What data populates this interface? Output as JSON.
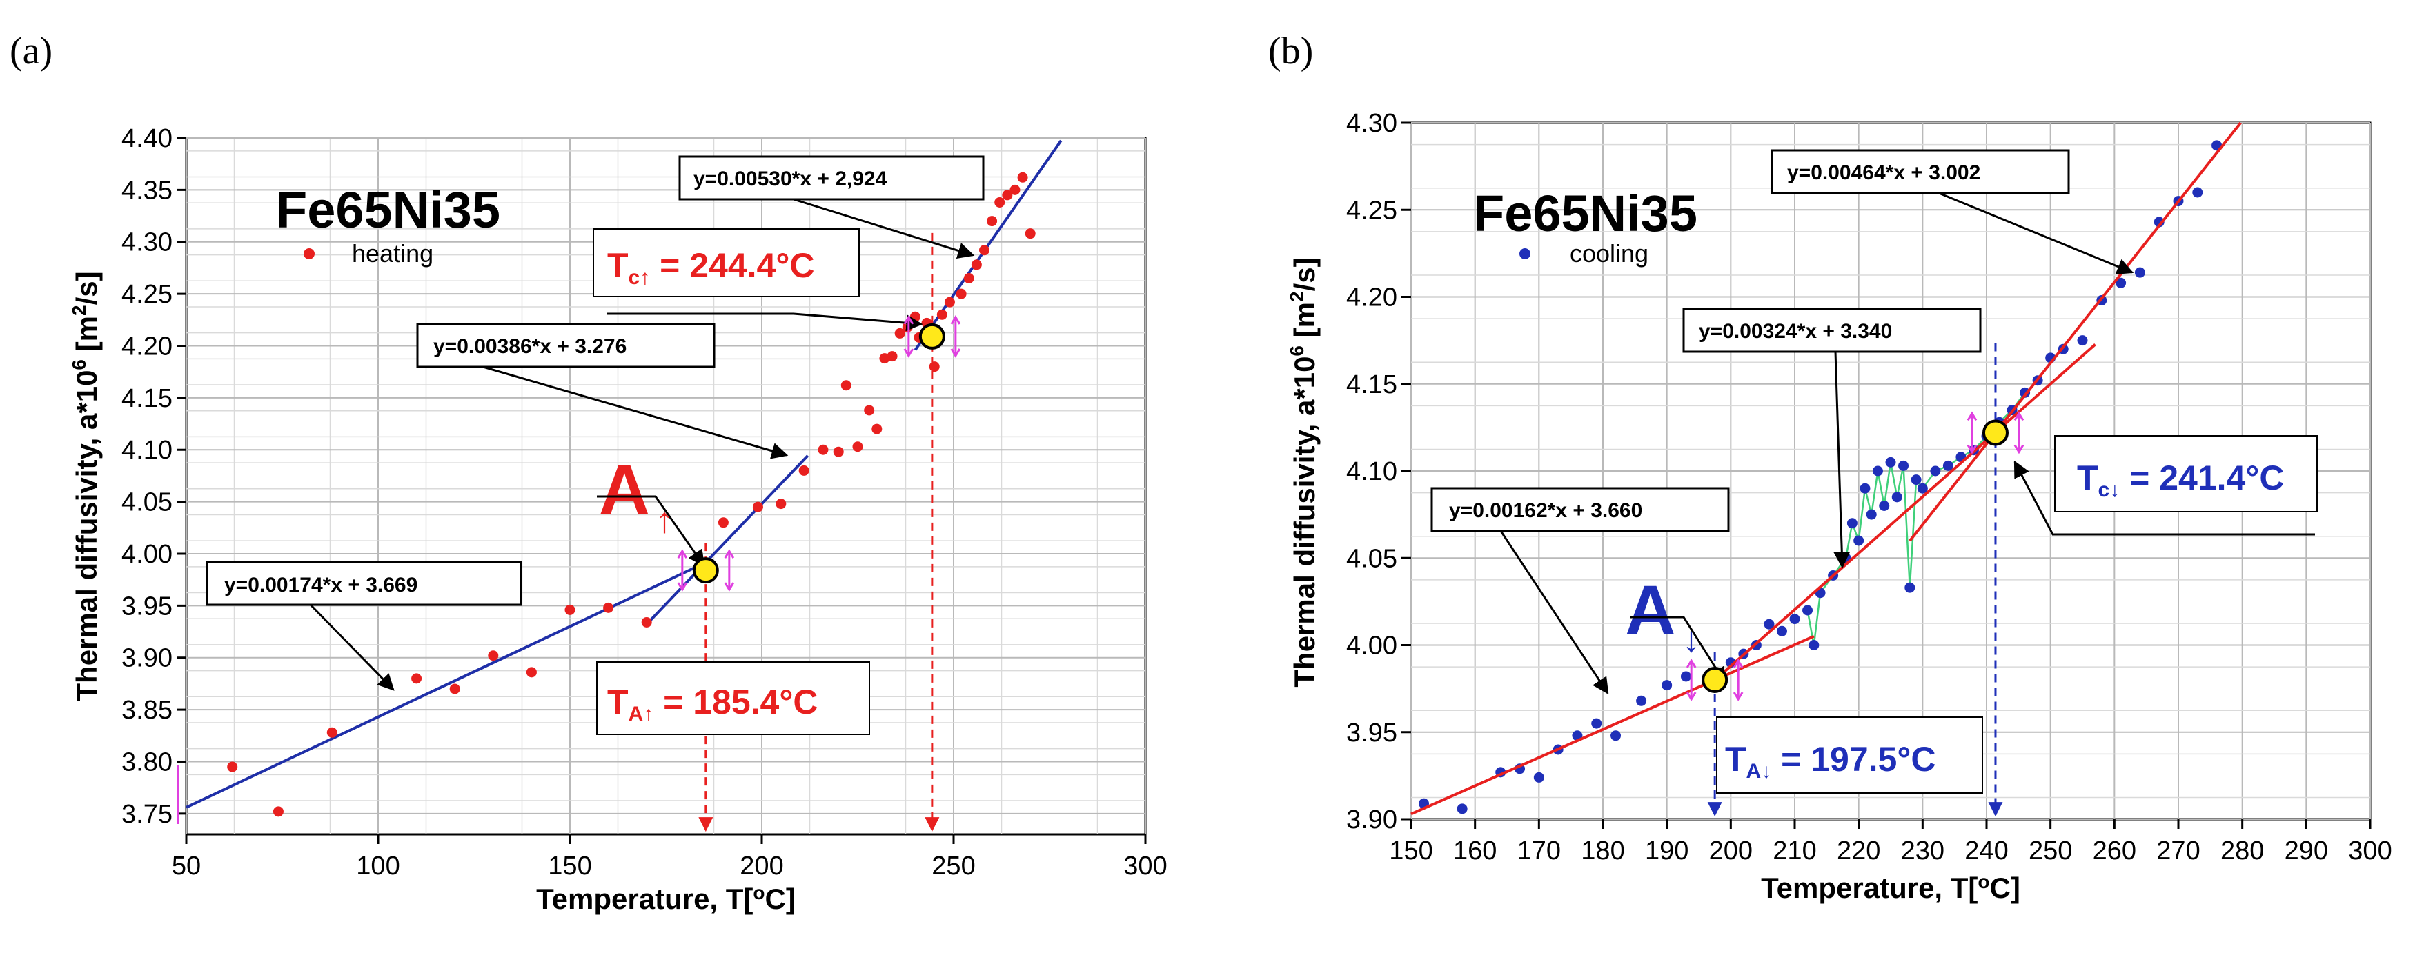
{
  "chart_data": [
    {
      "panel_label": "(a)",
      "type": "scatter",
      "title": "Fe65Ni35",
      "legend": "heating",
      "xlabel": "Temperature, T[°C]",
      "ylabel": "Thermal diffusivity, a*10⁶ [m²/s]",
      "xlim": [
        50,
        300
      ],
      "ylim": [
        3.73,
        4.4
      ],
      "xticks": [
        "50",
        "100",
        "150",
        "200",
        "250",
        "300"
      ],
      "yticks": [
        "3.75",
        "3.80",
        "3.85",
        "3.90",
        "3.95",
        "4.00",
        "4.05",
        "4.10",
        "4.15",
        "4.20",
        "4.25",
        "4.30",
        "4.35",
        "4.40"
      ],
      "marker_color": "#e8201f",
      "line_color": "#1f2fa8",
      "points": [
        [
          62,
          3.795
        ],
        [
          74,
          3.752
        ],
        [
          88,
          3.828
        ],
        [
          110,
          3.88
        ],
        [
          120,
          3.87
        ],
        [
          130,
          3.902
        ],
        [
          140,
          3.886
        ],
        [
          150,
          3.946
        ],
        [
          160,
          3.948
        ],
        [
          170,
          3.934
        ],
        [
          190,
          4.03
        ],
        [
          199,
          4.045
        ],
        [
          205,
          4.048
        ],
        [
          211,
          4.08
        ],
        [
          216,
          4.1
        ],
        [
          220,
          4.098
        ],
        [
          222,
          4.162
        ],
        [
          225,
          4.103
        ],
        [
          228,
          4.138
        ],
        [
          230,
          4.12
        ],
        [
          232,
          4.188
        ],
        [
          234,
          4.19
        ],
        [
          236,
          4.212
        ],
        [
          238,
          4.218
        ],
        [
          240,
          4.228
        ],
        [
          241,
          4.208
        ],
        [
          243,
          4.222
        ],
        [
          245,
          4.18
        ],
        [
          247,
          4.23
        ],
        [
          249,
          4.242
        ],
        [
          252,
          4.25
        ],
        [
          254,
          4.265
        ],
        [
          256,
          4.278
        ],
        [
          258,
          4.292
        ],
        [
          260,
          4.32
        ],
        [
          262,
          4.338
        ],
        [
          264,
          4.345
        ],
        [
          266,
          4.35
        ],
        [
          268,
          4.362
        ],
        [
          270,
          4.308
        ]
      ],
      "fit_lines": [
        {
          "label": "y=0.00174*x + 3.669",
          "slope": 0.00174,
          "intercept": 3.669,
          "x_range": [
            50,
            185
          ]
        },
        {
          "label": "y=0.00386*x + 3.276",
          "slope": 0.00386,
          "intercept": 3.276,
          "x_range": [
            171,
            212
          ]
        },
        {
          "label": "y=0.00530*x + 2,924",
          "slope": 0.0053,
          "intercept": 2.924,
          "x_range": [
            240,
            278
          ]
        }
      ],
      "transitions": [
        {
          "label": "A",
          "arrow": "↑",
          "x": 185.4,
          "y": 3.984,
          "annotation_main": "T",
          "annotation_sub": "A↑",
          "annotation_value": " = 185.4",
          "annotation_unit": "°C"
        },
        {
          "label": "Tc",
          "x": 244.4,
          "y": 4.209,
          "annotation_main": "T",
          "annotation_sub": "c↑",
          "annotation_value": " = 244.4",
          "annotation_unit": "°C"
        }
      ]
    },
    {
      "panel_label": "(b)",
      "type": "scatter",
      "title": "Fe65Ni35",
      "legend": "cooling",
      "xlabel": "Temperature, T[°C]",
      "ylabel": "Thermal diffusivity, a*10⁶ [m²/s]",
      "xlim": [
        150,
        300
      ],
      "ylim": [
        3.9,
        4.3
      ],
      "xticks": [
        "150",
        "160",
        "170",
        "180",
        "190",
        "200",
        "210",
        "220",
        "230",
        "240",
        "250",
        "260",
        "270",
        "280",
        "290",
        "300"
      ],
      "yticks": [
        "3.90",
        "3.95",
        "4.00",
        "4.05",
        "4.10",
        "4.15",
        "4.20",
        "4.25",
        "4.30"
      ],
      "marker_color": "#1f2fb8",
      "line_color": "#e8201f",
      "points": [
        [
          152,
          3.909
        ],
        [
          158,
          3.906
        ],
        [
          164,
          3.927
        ],
        [
          167,
          3.929
        ],
        [
          170,
          3.924
        ],
        [
          173,
          3.94
        ],
        [
          176,
          3.948
        ],
        [
          179,
          3.955
        ],
        [
          182,
          3.948
        ],
        [
          186,
          3.968
        ],
        [
          190,
          3.977
        ],
        [
          193,
          3.982
        ],
        [
          197,
          3.98
        ],
        [
          200,
          3.99
        ],
        [
          202,
          3.995
        ],
        [
          204,
          4.0
        ],
        [
          206,
          4.012
        ],
        [
          208,
          4.008
        ],
        [
          210,
          4.015
        ],
        [
          212,
          4.02
        ],
        [
          213,
          4.0
        ],
        [
          214,
          4.03
        ],
        [
          216,
          4.04
        ],
        [
          218,
          4.05
        ],
        [
          219,
          4.07
        ],
        [
          220,
          4.06
        ],
        [
          221,
          4.09
        ],
        [
          222,
          4.075
        ],
        [
          223,
          4.1
        ],
        [
          224,
          4.08
        ],
        [
          225,
          4.105
        ],
        [
          226,
          4.085
        ],
        [
          227,
          4.103
        ],
        [
          228,
          4.033
        ],
        [
          229,
          4.095
        ],
        [
          230,
          4.09
        ],
        [
          232,
          4.1
        ],
        [
          234,
          4.103
        ],
        [
          236,
          4.108
        ],
        [
          238,
          4.112
        ],
        [
          240,
          4.12
        ],
        [
          242,
          4.128
        ],
        [
          244,
          4.135
        ],
        [
          246,
          4.145
        ],
        [
          248,
          4.152
        ],
        [
          250,
          4.165
        ],
        [
          252,
          4.17
        ],
        [
          255,
          4.175
        ],
        [
          258,
          4.198
        ],
        [
          261,
          4.208
        ],
        [
          264,
          4.214
        ],
        [
          267,
          4.243
        ],
        [
          270,
          4.255
        ],
        [
          273,
          4.26
        ],
        [
          276,
          4.287
        ]
      ],
      "fit_lines": [
        {
          "label": "y=0.00162*x + 3.660",
          "slope": 0.00162,
          "intercept": 3.66,
          "x_range": [
            150,
            213
          ]
        },
        {
          "label": "y=0.00324*x + 3.340",
          "slope": 0.00324,
          "intercept": 3.34,
          "x_range": [
            197,
            257
          ]
        },
        {
          "label": "y=0.00464*x + 3.002",
          "slope": 0.00464,
          "intercept": 3.002,
          "x_range": [
            228,
            283
          ]
        }
      ],
      "transitions": [
        {
          "label": "A",
          "arrow": "↓",
          "x": 197.5,
          "y": 3.98,
          "annotation_main": "T",
          "annotation_sub": "A↓",
          "annotation_value": " = 197.5",
          "annotation_unit": "°C"
        },
        {
          "label": "Tc",
          "x": 241.4,
          "y": 4.122,
          "annotation_main": "T",
          "annotation_sub": "c↓",
          "annotation_value": " = 241.4",
          "annotation_unit": "°C"
        }
      ]
    }
  ]
}
